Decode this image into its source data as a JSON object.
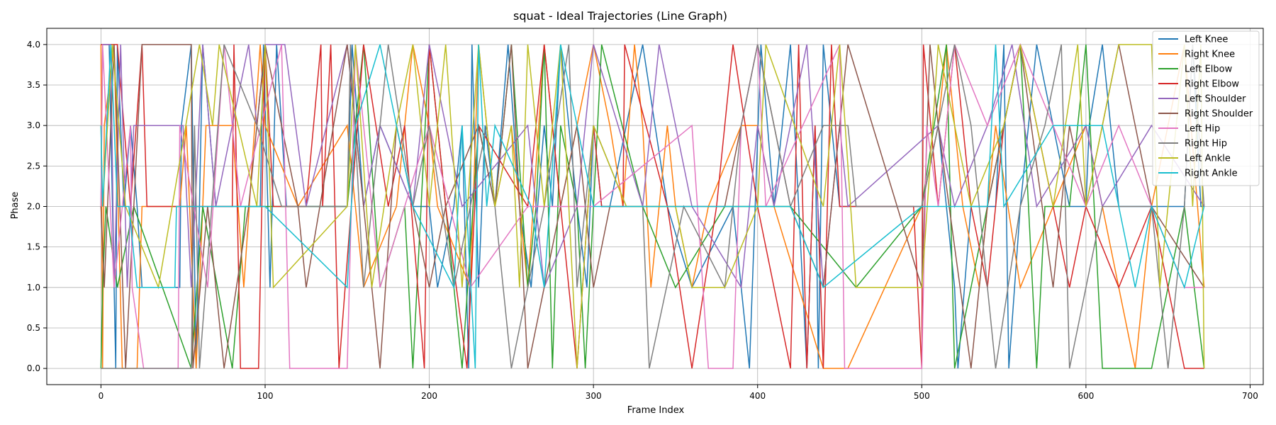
{
  "chart_data": {
    "type": "line",
    "title": "squat - Ideal Trajectories (Line Graph)",
    "xlabel": "Frame Index",
    "ylabel": "Phase",
    "xlim": [
      -33,
      708
    ],
    "ylim": [
      -0.2,
      4.2
    ],
    "xticks": [
      0,
      100,
      200,
      300,
      400,
      500,
      600,
      700
    ],
    "yticks": [
      0.0,
      0.5,
      1.0,
      1.5,
      2.0,
      2.5,
      3.0,
      3.5,
      4.0
    ],
    "xtick_labels": [
      "0",
      "100",
      "200",
      "300",
      "400",
      "500",
      "600",
      "700"
    ],
    "ytick_labels": [
      "0.0",
      "0.5",
      "1.0",
      "1.5",
      "2.0",
      "2.5",
      "3.0",
      "3.5",
      "4.0"
    ],
    "grid": true,
    "legend_position": "top-right",
    "series": [
      {
        "name": "Left Knee",
        "color": "#1f77b4",
        "x": [
          0,
          5,
          9,
          10,
          14,
          18,
          22,
          25,
          48,
          49,
          55,
          58,
          62,
          70,
          97,
          99,
          103,
          107,
          113,
          150,
          153,
          160,
          170,
          190,
          200,
          205,
          215,
          220,
          224,
          226,
          230,
          234,
          240,
          248,
          255,
          262,
          270,
          275,
          280,
          290,
          296,
          300,
          305,
          310,
          330,
          345,
          360,
          385,
          395,
          402,
          410,
          420,
          430,
          435,
          437,
          440,
          450,
          500,
          510,
          520,
          522,
          530,
          545,
          550,
          553,
          560,
          570,
          590,
          600,
          602,
          610,
          620,
          625,
          630,
          640,
          650,
          660,
          665,
          670,
          672
        ],
        "y": [
          4,
          4,
          0,
          4,
          2,
          3,
          2,
          1,
          1,
          3,
          4,
          0,
          4,
          2,
          2,
          4,
          1,
          4,
          2,
          2,
          4,
          2,
          3,
          2,
          2,
          1,
          2,
          3,
          0,
          4,
          1,
          3,
          2,
          4,
          2,
          1,
          3,
          2,
          4,
          2,
          1,
          3,
          2,
          2,
          4,
          2,
          1,
          2,
          0,
          4,
          2,
          4,
          0,
          3,
          0,
          4,
          2,
          2,
          3,
          1,
          0,
          2,
          2,
          4,
          0,
          2,
          4,
          2,
          2,
          3,
          4,
          2,
          2,
          2,
          2,
          2,
          2,
          4,
          2,
          2
        ]
      },
      {
        "name": "Right Knee",
        "color": "#ff7f0e",
        "x": [
          0,
          1,
          2,
          8,
          13,
          22,
          25,
          48,
          52,
          58,
          64,
          80,
          87,
          97,
          100,
          120,
          150,
          160,
          180,
          190,
          200,
          205,
          225,
          230,
          240,
          250,
          260,
          270,
          280,
          290,
          300,
          310,
          318,
          325,
          330,
          335,
          345,
          350,
          360,
          370,
          390,
          400,
          410,
          440,
          455,
          500,
          510,
          515,
          525,
          535,
          545,
          560,
          580,
          600,
          620,
          630,
          640,
          660,
          672
        ],
        "y": [
          4,
          0,
          3,
          4,
          0,
          0,
          2,
          2,
          3,
          0,
          3,
          3,
          1,
          4,
          3,
          2,
          3,
          1,
          2,
          4,
          3,
          2,
          1,
          4,
          2,
          3,
          1,
          4,
          2,
          3,
          4,
          3,
          2,
          4,
          3,
          1,
          3,
          2,
          1,
          2,
          3,
          3,
          2,
          0,
          0,
          2,
          3,
          4,
          2,
          1,
          3,
          1,
          2,
          3,
          1,
          0,
          2,
          4,
          1
        ]
      },
      {
        "name": "Left Elbow",
        "color": "#2ca02c",
        "x": [
          0,
          1,
          3,
          10,
          20,
          55,
          62,
          80,
          88,
          100,
          150,
          160,
          170,
          185,
          190,
          200,
          210,
          220,
          230,
          240,
          250,
          260,
          265,
          270,
          275,
          280,
          290,
          295,
          300,
          305,
          330,
          350,
          380,
          400,
          420,
          460,
          500,
          515,
          520,
          540,
          560,
          570,
          575,
          590,
          600,
          610,
          640,
          660,
          672
        ],
        "y": [
          0,
          1,
          2,
          1,
          2,
          0,
          2,
          0,
          2,
          2,
          2,
          4,
          1,
          2,
          0,
          4,
          2,
          0,
          3,
          2,
          4,
          1,
          2,
          4,
          0,
          3,
          2,
          0,
          2,
          4,
          2,
          1,
          2,
          2,
          2,
          1,
          2,
          4,
          0,
          2,
          4,
          0,
          2,
          2,
          4,
          0,
          0,
          2,
          0
        ]
      },
      {
        "name": "Right Elbow",
        "color": "#d62728",
        "x": [
          0,
          10,
          18,
          25,
          28,
          80,
          81,
          85,
          96,
          100,
          105,
          125,
          134,
          135,
          140,
          145,
          160,
          175,
          185,
          197,
          200,
          210,
          223,
          230,
          260,
          270,
          290,
          300,
          305,
          318,
          319,
          345,
          360,
          375,
          385,
          400,
          420,
          425,
          430,
          435,
          440,
          445,
          450,
          495,
          500,
          501,
          510,
          520,
          530,
          540,
          550,
          560,
          580,
          590,
          600,
          620,
          640,
          660,
          672
        ],
        "y": [
          4,
          4,
          2,
          4,
          2,
          2,
          4,
          0,
          0,
          4,
          2,
          2,
          4,
          2,
          4,
          0,
          4,
          2,
          3,
          0,
          4,
          2,
          0,
          3,
          2,
          4,
          0,
          3,
          2,
          2,
          4,
          2,
          0,
          2,
          4,
          2,
          0,
          4,
          0,
          3,
          0,
          4,
          2,
          2,
          0,
          4,
          2,
          4,
          2,
          1,
          3,
          4,
          2,
          1,
          2,
          1,
          2,
          0,
          0
        ]
      },
      {
        "name": "Left Shoulder",
        "color": "#9467bd",
        "x": [
          0,
          1,
          6,
          8,
          12,
          16,
          20,
          50,
          55,
          62,
          70,
          90,
          95,
          100,
          112,
          125,
          150,
          160,
          170,
          190,
          200,
          220,
          260,
          270,
          290,
          300,
          330,
          340,
          360,
          390,
          400,
          410,
          430,
          440,
          450,
          455,
          510,
          520,
          540,
          555,
          570,
          600,
          610,
          640,
          672
        ],
        "y": [
          2,
          4,
          4,
          1,
          4,
          1,
          3,
          3,
          1,
          4,
          2,
          4,
          3,
          4,
          4,
          2,
          4,
          2,
          3,
          2,
          4,
          2,
          3,
          1,
          2,
          4,
          2,
          4,
          2,
          1,
          3,
          2,
          4,
          1,
          3,
          2,
          3,
          2,
          3,
          4,
          2,
          3,
          2,
          3,
          2
        ]
      },
      {
        "name": "Right Shoulder",
        "color": "#8c564b",
        "x": [
          0,
          2,
          8,
          15,
          25,
          55,
          56,
          65,
          75,
          90,
          100,
          120,
          125,
          150,
          160,
          170,
          180,
          190,
          200,
          210,
          230,
          240,
          250,
          260,
          280,
          290,
          300,
          310,
          340,
          380,
          400,
          410,
          420,
          440,
          455,
          500,
          505,
          510,
          530,
          540,
          560,
          580,
          590,
          600,
          620,
          640,
          672
        ],
        "y": [
          2,
          1,
          4,
          0,
          4,
          4,
          0,
          2,
          0,
          2,
          4,
          2,
          1,
          4,
          2,
          0,
          3,
          2,
          1,
          2,
          3,
          2,
          4,
          0,
          2,
          3,
          1,
          2,
          2,
          2,
          4,
          3,
          2,
          1,
          4,
          1,
          4,
          3,
          0,
          2,
          4,
          1,
          3,
          2,
          4,
          2,
          1
        ]
      },
      {
        "name": "Left Hip",
        "color": "#e377c2",
        "x": [
          0,
          1,
          8,
          18,
          19,
          26,
          47,
          48,
          65,
          75,
          85,
          110,
          115,
          150,
          155,
          160,
          170,
          200,
          225,
          260,
          300,
          360,
          370,
          385,
          390,
          400,
          405,
          450,
          453,
          500,
          503,
          510,
          520,
          540,
          560,
          580,
          600,
          620,
          640,
          660,
          672
        ],
        "y": [
          2,
          4,
          1,
          3,
          1,
          0,
          0,
          3,
          1,
          4,
          2,
          4,
          0,
          0,
          4,
          3,
          1,
          3,
          1,
          2,
          2,
          3,
          0,
          0,
          3,
          4,
          2,
          4,
          0,
          0,
          3,
          2,
          4,
          3,
          4,
          3,
          2,
          3,
          2,
          1,
          1
        ]
      },
      {
        "name": "Right Hip",
        "color": "#7f7f7f",
        "x": [
          0,
          1,
          55,
          57,
          60,
          75,
          95,
          110,
          150,
          152,
          160,
          170,
          175,
          190,
          200,
          215,
          235,
          250,
          270,
          285,
          290,
          300,
          320,
          330,
          334,
          355,
          380,
          390,
          400,
          420,
          440,
          455,
          460,
          500,
          520,
          530,
          545,
          560,
          575,
          585,
          590,
          610,
          640,
          650,
          660,
          665,
          672
        ],
        "y": [
          0,
          0,
          0,
          3,
          0,
          4,
          3,
          2,
          2,
          4,
          1,
          3,
          4,
          2,
          3,
          1,
          3,
          0,
          2,
          4,
          1,
          3,
          2,
          2,
          0,
          2,
          1,
          3,
          4,
          2,
          3,
          3,
          2,
          2,
          4,
          3,
          0,
          2,
          3,
          4,
          0,
          2,
          2,
          0,
          2,
          4,
          2
        ]
      },
      {
        "name": "Left Ankle",
        "color": "#bcbd22",
        "x": [
          0,
          1,
          7,
          15,
          35,
          60,
          68,
          72,
          95,
          100,
          105,
          150,
          155,
          165,
          180,
          190,
          200,
          210,
          220,
          230,
          240,
          250,
          255,
          260,
          270,
          280,
          290,
          300,
          320,
          350,
          360,
          380,
          400,
          405,
          440,
          450,
          460,
          500,
          510,
          530,
          550,
          560,
          580,
          595,
          600,
          610,
          620,
          640,
          645,
          660,
          665,
          670,
          672
        ],
        "y": [
          3,
          2,
          4,
          2,
          1,
          4,
          3,
          4,
          2,
          4,
          1,
          2,
          4,
          1,
          3,
          4,
          2,
          4,
          1,
          4,
          2,
          3,
          1,
          4,
          2,
          4,
          0,
          3,
          2,
          2,
          1,
          1,
          2,
          4,
          2,
          4,
          1,
          1,
          4,
          2,
          3,
          4,
          2,
          4,
          2,
          3,
          4,
          4,
          1,
          4,
          2,
          4,
          0
        ]
      },
      {
        "name": "Right Ankle",
        "color": "#17becf",
        "x": [
          0,
          1,
          6,
          10,
          17,
          22,
          45,
          46,
          100,
          150,
          155,
          170,
          180,
          190,
          215,
          220,
          228,
          230,
          235,
          240,
          262,
          270,
          280,
          300,
          305,
          400,
          420,
          440,
          500,
          520,
          540,
          545,
          550,
          580,
          600,
          610,
          620,
          630,
          640,
          660,
          672
        ],
        "y": [
          3,
          2,
          4,
          2,
          2,
          1,
          1,
          2,
          2,
          1,
          3,
          4,
          3,
          2,
          1,
          3,
          0,
          4,
          2,
          3,
          2,
          1,
          4,
          2,
          2,
          2,
          2,
          1,
          2,
          2,
          2,
          4,
          2,
          3,
          3,
          3,
          2,
          1,
          2,
          1,
          2
        ]
      }
    ]
  }
}
